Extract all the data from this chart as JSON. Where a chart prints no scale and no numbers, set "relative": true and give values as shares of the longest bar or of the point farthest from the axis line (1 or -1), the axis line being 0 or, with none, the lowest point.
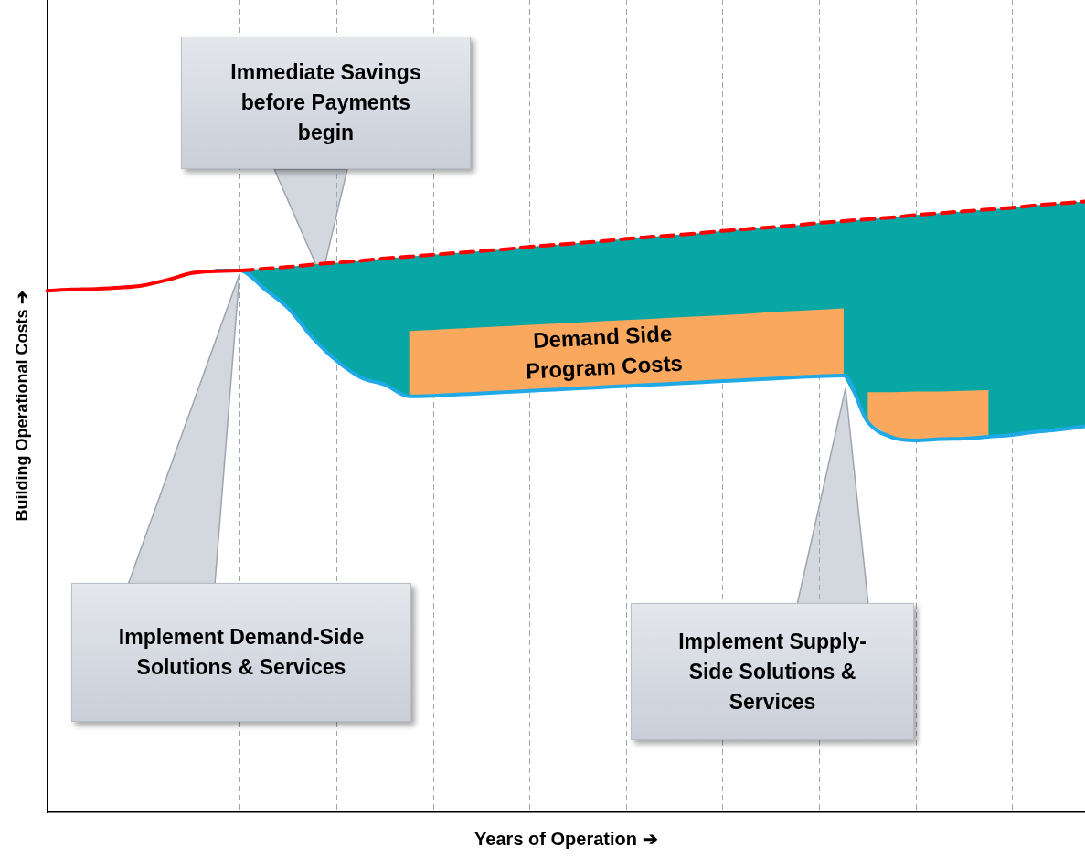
{
  "chart_data": {
    "type": "line",
    "relative": true,
    "xlabel": "Years of Operation ➔",
    "ylabel": "Building Operational Costs ➔",
    "grid": "x",
    "legend": false,
    "marker": "none",
    "categories": [
      null,
      null,
      null,
      null,
      null,
      null,
      null,
      null,
      null,
      null,
      null,
      null,
      null,
      null,
      null,
      null,
      null,
      null,
      null,
      null,
      null,
      null,
      null,
      null,
      null,
      null,
      null,
      null,
      null,
      null,
      null,
      null,
      null,
      null,
      null,
      null,
      null,
      null,
      null,
      null,
      null,
      null,
      null,
      null
    ],
    "annotations": [
      "Immediate Savings before Payments begin",
      "Demand Side Program Costs",
      "Implement Demand-Side Solutions & Services",
      "Implement Supply-Side Solutions & Services"
    ],
    "series": [
      {
        "type": "area",
        "color": "#08a6a4",
        "values": [
          null,
          null,
          null,
          null,
          null,
          null,
          null,
          null,
          0.887,
          0.89,
          0.893,
          0.897,
          0.9,
          0.903,
          0.907,
          0.91,
          0.913,
          0.916,
          0.919,
          0.922,
          0.926,
          0.929,
          0.932,
          0.935,
          0.939,
          0.942,
          0.945,
          0.948,
          0.952,
          0.955,
          0.958,
          0.961,
          0.965,
          0.968,
          0.971,
          0.974,
          0.978,
          0.981,
          0.984,
          0.987,
          0.99,
          0.994,
          0.997,
          1
        ]
      },
      {
        "type": "area",
        "color": "#f9a85d",
        "values": [
          null,
          null,
          null,
          null,
          null,
          null,
          null,
          null,
          null,
          null,
          null,
          null,
          null,
          null,
          null,
          0.788,
          0.79,
          0.792,
          0.794,
          0.796,
          0.798,
          0.8,
          0.802,
          0.804,
          0.806,
          0.808,
          0.81,
          0.812,
          0.814,
          0.816,
          0.819,
          0.821,
          0.823,
          0.825,
          null,
          null,
          null,
          null,
          null,
          null,
          null,
          null,
          null,
          null
        ]
      },
      {
        "type": "area",
        "color": "#f9a85d",
        "values": [
          null,
          null,
          null,
          null,
          null,
          null,
          null,
          null,
          null,
          null,
          null,
          null,
          null,
          null,
          null,
          null,
          null,
          null,
          null,
          null,
          null,
          null,
          null,
          null,
          null,
          null,
          null,
          null,
          null,
          null,
          null,
          null,
          null,
          null,
          0.688,
          0.688,
          0.689,
          0.689,
          0.69,
          0.691,
          null,
          null,
          null,
          null
        ]
      },
      {
        "type": "line",
        "color": "#ff0000",
        "line_style": "solid",
        "values": [
          0.854,
          0.856,
          0.857,
          0.859,
          0.863,
          0.872,
          0.883,
          0.886,
          0.887,
          null,
          null,
          null,
          null,
          null,
          null,
          null,
          null,
          null,
          null,
          null,
          null,
          null,
          null,
          null,
          null,
          null,
          null,
          null,
          null,
          null,
          null,
          null,
          null,
          null,
          null,
          null,
          null,
          null,
          null,
          null,
          null,
          null,
          null,
          null
        ]
      },
      {
        "type": "line",
        "color": "#ff0000",
        "line_style": "dashed",
        "values": [
          null,
          null,
          null,
          null,
          null,
          null,
          null,
          null,
          0.887,
          0.89,
          0.893,
          0.897,
          0.9,
          0.903,
          0.907,
          0.91,
          0.913,
          0.916,
          0.919,
          0.922,
          0.926,
          0.929,
          0.932,
          0.935,
          0.939,
          0.942,
          0.945,
          0.948,
          0.952,
          0.955,
          0.958,
          0.961,
          0.965,
          0.968,
          0.971,
          0.974,
          0.978,
          0.981,
          0.984,
          0.987,
          0.99,
          0.994,
          0.997,
          1
        ]
      },
      {
        "type": "line",
        "color": "#1fa9e6",
        "line_style": "solid",
        "values": [
          null,
          null,
          null,
          null,
          null,
          null,
          null,
          0.887,
          0.887,
          0.857,
          0.825,
          0.777,
          0.739,
          0.712,
          0.7,
          0.681,
          0.682,
          0.684,
          0.686,
          0.688,
          0.69,
          0.692,
          0.694,
          0.696,
          0.698,
          0.7,
          0.702,
          0.704,
          0.706,
          0.708,
          0.71,
          0.712,
          0.714,
          0.715,
          0.639,
          0.614,
          0.609,
          0.611,
          0.612,
          0.615,
          0.618,
          0.623,
          0.627,
          0.632
        ]
      }
    ]
  }
}
